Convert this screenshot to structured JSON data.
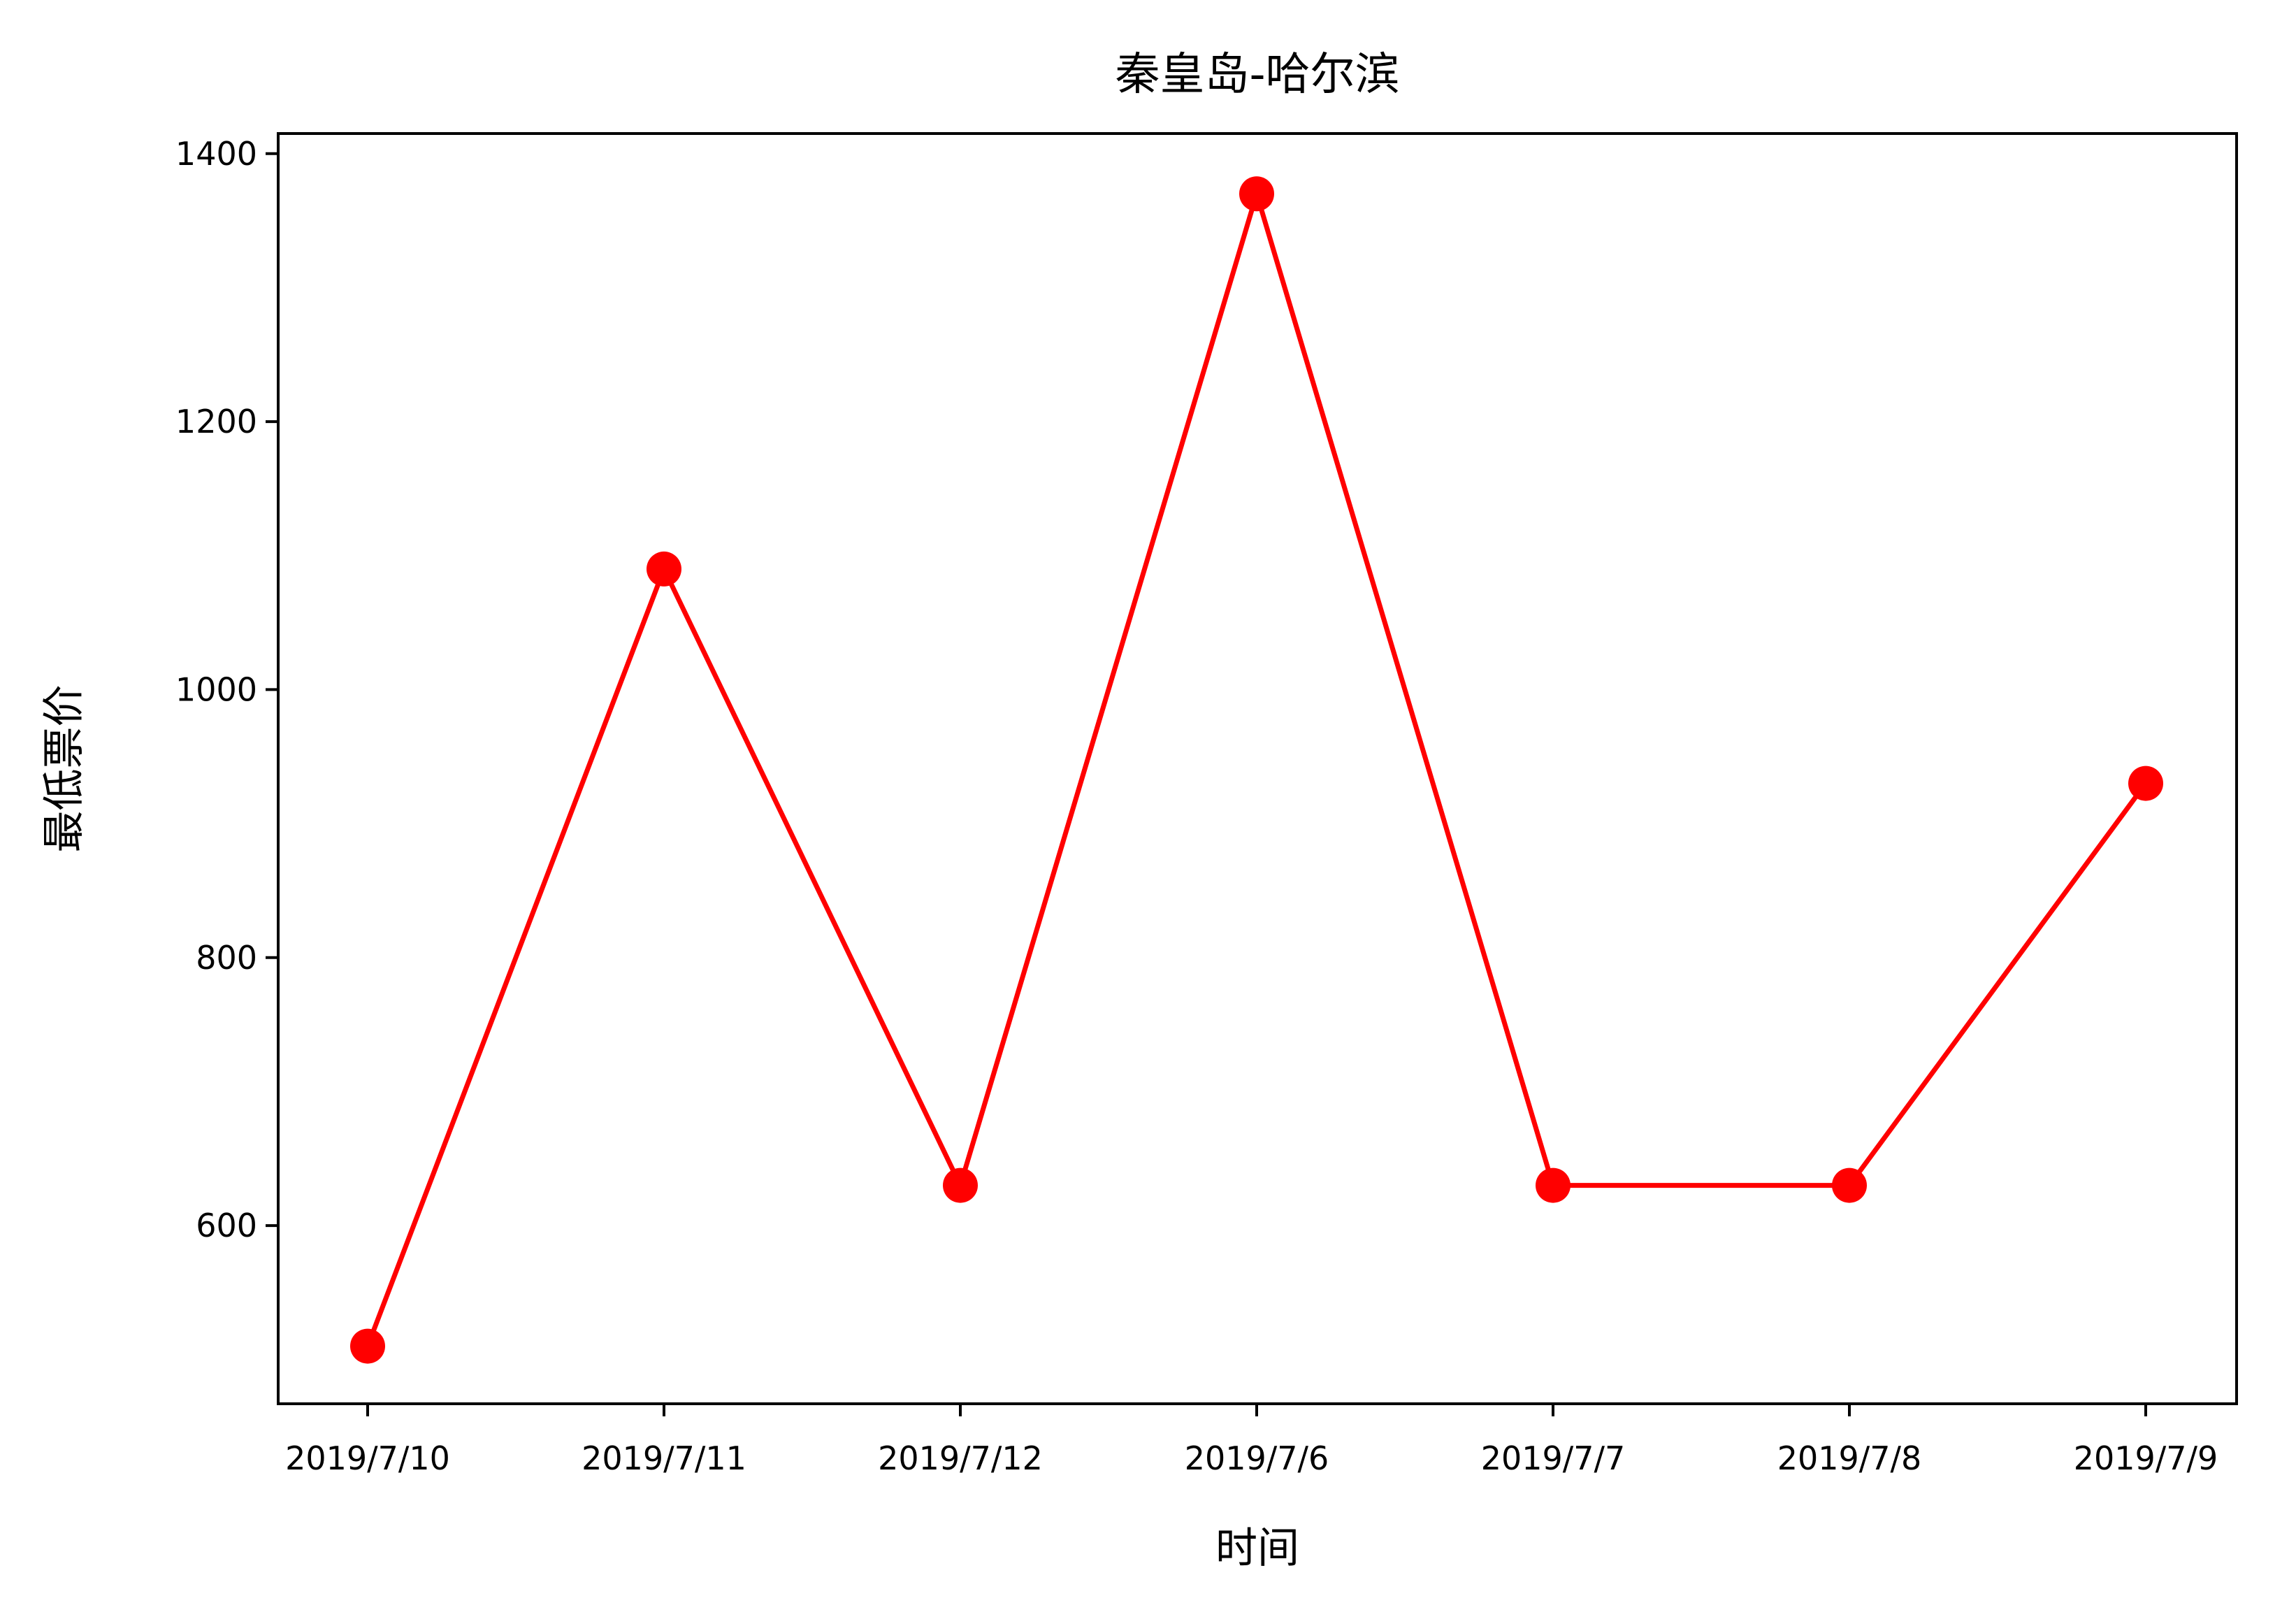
{
  "chart_data": {
    "type": "line",
    "title": "秦皇岛-哈尔滨",
    "xlabel": "时间",
    "ylabel": "最低票价",
    "categories": [
      "2019/7/10",
      "2019/7/11",
      "2019/7/12",
      "2019/7/6",
      "2019/7/7",
      "2019/7/8",
      "2019/7/9"
    ],
    "series": [
      {
        "values": [
          510,
          1090,
          630,
          1370,
          630,
          630,
          930
        ],
        "color": "#ff0000",
        "marker": "circle"
      }
    ],
    "ylim": [
      467,
      1415
    ],
    "yticks": [
      600,
      800,
      1000,
      1200,
      1400
    ],
    "grid": false,
    "legend": "none"
  }
}
